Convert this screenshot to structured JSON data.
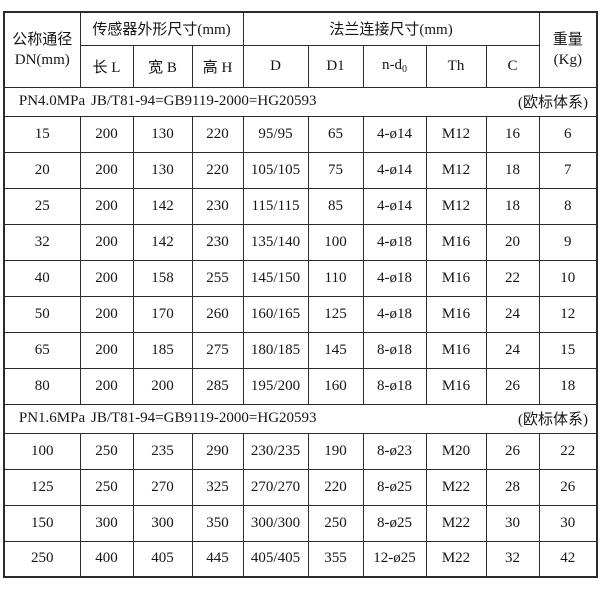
{
  "table": {
    "header": {
      "dn_line1": "公称通径",
      "dn_line2": "DN(mm)",
      "sensor_group": "传感器外形尺寸(mm)",
      "flange_group": "法兰连接尺寸(mm)",
      "weight_line1": "重量",
      "weight_line2": "(Kg)",
      "sub_l": "长 L",
      "sub_b": "宽 B",
      "sub_h": "高 H",
      "sub_d": "D",
      "sub_d1": "D1",
      "sub_nd_text": "n-d",
      "sub_nd_sub": "0",
      "sub_th": "Th",
      "sub_c": "C"
    },
    "sections": [
      {
        "pn": "PN4.0MPa",
        "standard": "JB/T81-94=GB9119-2000=HG20593",
        "note": "(欧标体系)",
        "rows": [
          [
            "15",
            "200",
            "130",
            "220",
            "95/95",
            "65",
            "4-ø14",
            "M12",
            "16",
            "6"
          ],
          [
            "20",
            "200",
            "130",
            "220",
            "105/105",
            "75",
            "4-ø14",
            "M12",
            "18",
            "7"
          ],
          [
            "25",
            "200",
            "142",
            "230",
            "115/115",
            "85",
            "4-ø14",
            "M12",
            "18",
            "8"
          ],
          [
            "32",
            "200",
            "142",
            "230",
            "135/140",
            "100",
            "4-ø18",
            "M16",
            "20",
            "9"
          ],
          [
            "40",
            "200",
            "158",
            "255",
            "145/150",
            "110",
            "4-ø18",
            "M16",
            "22",
            "10"
          ],
          [
            "50",
            "200",
            "170",
            "260",
            "160/165",
            "125",
            "4-ø18",
            "M16",
            "24",
            "12"
          ],
          [
            "65",
            "200",
            "185",
            "275",
            "180/185",
            "145",
            "8-ø18",
            "M16",
            "24",
            "15"
          ],
          [
            "80",
            "200",
            "200",
            "285",
            "195/200",
            "160",
            "8-ø18",
            "M16",
            "26",
            "18"
          ]
        ]
      },
      {
        "pn": "PN1.6MPa",
        "standard": "JB/T81-94=GB9119-2000=HG20593",
        "note": "(欧标体系)",
        "rows": [
          [
            "100",
            "250",
            "235",
            "290",
            "230/235",
            "190",
            "8-ø23",
            "M20",
            "26",
            "22"
          ],
          [
            "125",
            "250",
            "270",
            "325",
            "270/270",
            "220",
            "8-ø25",
            "M22",
            "28",
            "26"
          ],
          [
            "150",
            "300",
            "300",
            "350",
            "300/300",
            "250",
            "8-ø25",
            "M22",
            "30",
            "30"
          ],
          [
            "250",
            "400",
            "405",
            "445",
            "405/405",
            "355",
            "12-ø25",
            "M22",
            "32",
            "42"
          ]
        ]
      }
    ]
  }
}
